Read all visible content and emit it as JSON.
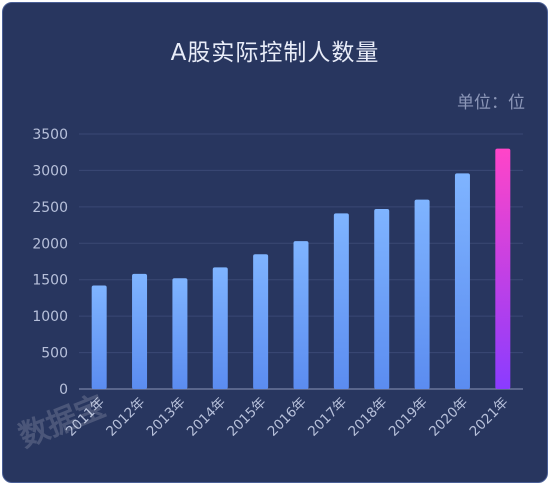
{
  "title": "A股实际控制人数量",
  "unit_label": "单位：位",
  "watermark": "数据宝",
  "colors": {
    "background": "#28365f",
    "bar_top": "#7fb4ff",
    "bar_bottom": "#5b8cf0",
    "highlight_top": "#ff45c8",
    "highlight_bottom": "#8a3cff",
    "gridline": "#3a4874",
    "axis": "#8c97b8"
  },
  "chart_data": {
    "type": "bar",
    "title": "A股实际控制人数量",
    "unit": "单位：位",
    "categories": [
      "2011年",
      "2012年",
      "2013年",
      "2014年",
      "2015年",
      "2016年",
      "2017年",
      "2018年",
      "2019年",
      "2020年",
      "2021年"
    ],
    "values": [
      1420,
      1580,
      1520,
      1670,
      1850,
      2030,
      2410,
      2470,
      2600,
      2960,
      3300
    ],
    "highlight_index": 10,
    "ylim": [
      0,
      3500
    ],
    "yticks": [
      0,
      500,
      1000,
      1500,
      2000,
      2500,
      3000,
      3500
    ],
    "grid": true,
    "legend": "none"
  }
}
